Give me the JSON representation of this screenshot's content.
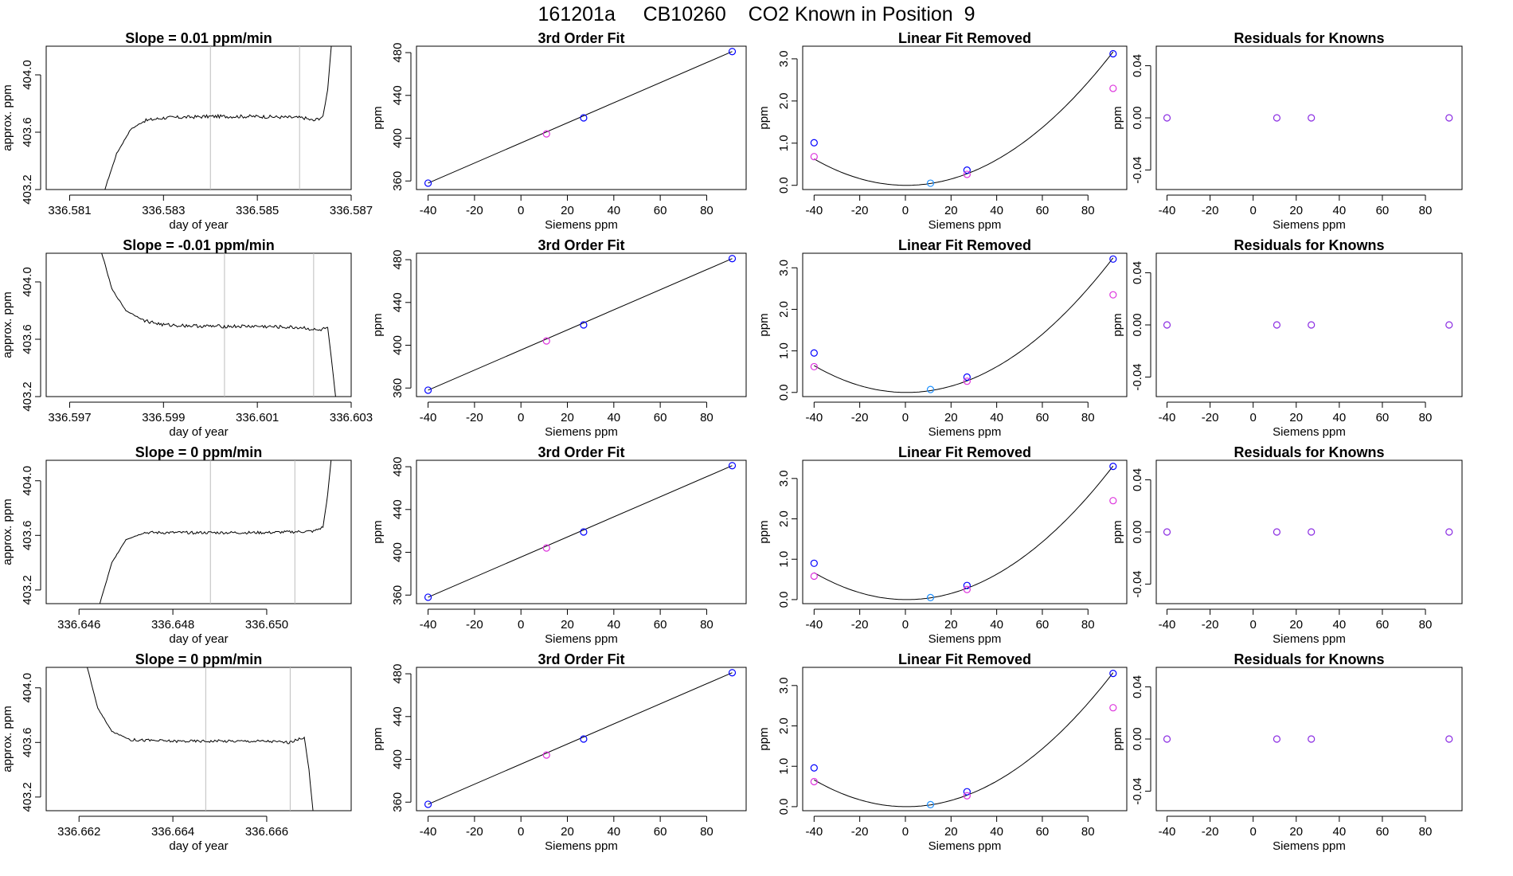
{
  "page": {
    "title": "161201a     CB10260    CO2 Known in Position  9"
  },
  "colors": {
    "axis": "#000000",
    "trace": "#000000",
    "vline": "#bdbdbd",
    "blue_point": "#0000ff",
    "cyan_point": "#1e90ff",
    "magenta_point": "#dd33dd",
    "fit_line": "#000000"
  },
  "chart_data": [
    {
      "type": "line",
      "title": "Slope =  0.01  ppm/min",
      "xlabel": "day of year",
      "ylabel": "approx. ppm",
      "xlim": [
        336.5805,
        336.587
      ],
      "ylim": [
        403.2,
        404.2
      ],
      "xticks": [
        "336.581",
        "336.583",
        "336.585",
        "336.587"
      ],
      "yticks": [
        "403.2",
        "403.6",
        "404.0"
      ],
      "vlines": [
        336.584,
        336.5859
      ],
      "trace": [
        [
          336.5817,
          403.15
        ],
        [
          336.582,
          403.45
        ],
        [
          336.5823,
          403.62
        ],
        [
          336.5826,
          403.68
        ],
        [
          336.583,
          403.7
        ],
        [
          336.584,
          403.71
        ],
        [
          336.585,
          403.71
        ],
        [
          336.586,
          403.7
        ],
        [
          336.5862,
          403.68
        ],
        [
          336.5864,
          403.71
        ],
        [
          336.5865,
          403.9
        ],
        [
          336.5866,
          404.3
        ]
      ],
      "noise": 0.012
    },
    {
      "type": "scatter",
      "title": "3rd Order Fit",
      "xlabel": "Siemens ppm",
      "ylabel": "ppm",
      "xlim": [
        -45,
        97
      ],
      "ylim": [
        352,
        486
      ],
      "xticks": [
        "-40",
        "-20",
        "0",
        "20",
        "40",
        "60",
        "80"
      ],
      "yticks": [
        "360",
        "400",
        "440",
        "480"
      ],
      "points": [
        {
          "x": -40,
          "y": 358,
          "c": "blue"
        },
        {
          "x": 11,
          "y": 404,
          "c": "magenta"
        },
        {
          "x": 27,
          "y": 419,
          "c": "blue"
        },
        {
          "x": 91,
          "y": 481,
          "c": "blue"
        }
      ],
      "fit": {
        "x": [
          -40,
          91
        ],
        "y": [
          358,
          481
        ]
      }
    },
    {
      "type": "scatter",
      "title": "Linear Fit Removed",
      "xlabel": "Siemens ppm",
      "ylabel": "ppm",
      "xlim": [
        -45,
        97
      ],
      "ylim": [
        -0.1,
        3.3
      ],
      "xticks": [
        "-40",
        "-20",
        "0",
        "20",
        "40",
        "60",
        "80"
      ],
      "yticks": [
        "0.0",
        "1.0",
        "2.0",
        "3.0"
      ],
      "points": [
        {
          "x": -40,
          "y": 1.01,
          "c": "blue"
        },
        {
          "x": -40,
          "y": 0.68,
          "c": "magenta"
        },
        {
          "x": 11,
          "y": 0.05,
          "c": "cyan"
        },
        {
          "x": 27,
          "y": 0.36,
          "c": "blue"
        },
        {
          "x": 27,
          "y": 0.26,
          "c": "magenta"
        },
        {
          "x": 91,
          "y": 3.12,
          "c": "blue"
        },
        {
          "x": 91,
          "y": 2.3,
          "c": "magenta"
        }
      ],
      "curve": {
        "a": 0.000385,
        "b": -0.00025,
        "c": 0
      }
    },
    {
      "type": "scatter",
      "title": "Residuals for Knowns",
      "xlabel": "Siemens ppm",
      "ylabel": "ppm",
      "xlim": [
        -45,
        97
      ],
      "ylim": [
        -0.055,
        0.055
      ],
      "xticks": [
        "-40",
        "-20",
        "0",
        "20",
        "40",
        "60",
        "80"
      ],
      "yticks": [
        "-0.04",
        "0.00",
        "0.04"
      ],
      "points": [
        {
          "x": -40,
          "y": 0,
          "c": "violet"
        },
        {
          "x": 11,
          "y": 0,
          "c": "violet"
        },
        {
          "x": 27,
          "y": 0,
          "c": "violet"
        },
        {
          "x": 91,
          "y": 0,
          "c": "violet"
        }
      ]
    },
    {
      "type": "line",
      "title": "Slope =  -0.01  ppm/min",
      "xlabel": "day of year",
      "ylabel": "approx. ppm",
      "xlim": [
        336.5965,
        336.603
      ],
      "ylim": [
        403.2,
        404.2
      ],
      "xticks": [
        "336.597",
        "336.599",
        "336.601",
        "336.603"
      ],
      "yticks": [
        "403.2",
        "403.6",
        "404.0"
      ],
      "vlines": [
        336.6003,
        336.6022
      ],
      "trace": [
        [
          336.5976,
          404.3
        ],
        [
          336.5979,
          403.95
        ],
        [
          336.5982,
          403.8
        ],
        [
          336.5986,
          403.73
        ],
        [
          336.599,
          403.7
        ],
        [
          336.6,
          403.69
        ],
        [
          336.601,
          403.69
        ],
        [
          336.602,
          403.68
        ],
        [
          336.6023,
          403.66
        ],
        [
          336.6025,
          403.68
        ],
        [
          336.6026,
          403.4
        ],
        [
          336.6027,
          403.1
        ]
      ],
      "noise": 0.012
    },
    {
      "type": "scatter",
      "title": "3rd Order Fit",
      "xlabel": "Siemens ppm",
      "ylabel": "ppm",
      "xlim": [
        -45,
        97
      ],
      "ylim": [
        352,
        486
      ],
      "xticks": [
        "-40",
        "-20",
        "0",
        "20",
        "40",
        "60",
        "80"
      ],
      "yticks": [
        "360",
        "400",
        "440",
        "480"
      ],
      "points": [
        {
          "x": -40,
          "y": 358,
          "c": "blue"
        },
        {
          "x": 11,
          "y": 404,
          "c": "magenta"
        },
        {
          "x": 27,
          "y": 419,
          "c": "blue"
        },
        {
          "x": 91,
          "y": 481,
          "c": "blue"
        }
      ],
      "fit": {
        "x": [
          -40,
          91
        ],
        "y": [
          358,
          481
        ]
      }
    },
    {
      "type": "scatter",
      "title": "Linear Fit Removed",
      "xlabel": "Siemens ppm",
      "ylabel": "ppm",
      "xlim": [
        -45,
        97
      ],
      "ylim": [
        -0.1,
        3.35
      ],
      "xticks": [
        "-40",
        "-20",
        "0",
        "20",
        "40",
        "60",
        "80"
      ],
      "yticks": [
        "0.0",
        "1.0",
        "2.0",
        "3.0"
      ],
      "points": [
        {
          "x": -40,
          "y": 0.95,
          "c": "blue"
        },
        {
          "x": -40,
          "y": 0.62,
          "c": "magenta"
        },
        {
          "x": 11,
          "y": 0.07,
          "c": "cyan"
        },
        {
          "x": 27,
          "y": 0.37,
          "c": "blue"
        },
        {
          "x": 27,
          "y": 0.27,
          "c": "magenta"
        },
        {
          "x": 91,
          "y": 3.21,
          "c": "blue"
        },
        {
          "x": 91,
          "y": 2.35,
          "c": "magenta"
        }
      ],
      "curve": {
        "a": 0.000395,
        "b": -0.00035,
        "c": 0
      }
    },
    {
      "type": "scatter",
      "title": "Residuals for Knowns",
      "xlabel": "Siemens ppm",
      "ylabel": "ppm",
      "xlim": [
        -45,
        97
      ],
      "ylim": [
        -0.055,
        0.055
      ],
      "xticks": [
        "-40",
        "-20",
        "0",
        "20",
        "40",
        "60",
        "80"
      ],
      "yticks": [
        "-0.04",
        "0.00",
        "0.04"
      ],
      "points": [
        {
          "x": -40,
          "y": 0,
          "c": "violet"
        },
        {
          "x": 11,
          "y": 0,
          "c": "violet"
        },
        {
          "x": 27,
          "y": 0,
          "c": "violet"
        },
        {
          "x": 91,
          "y": 0,
          "c": "violet"
        }
      ]
    },
    {
      "type": "line",
      "title": "Slope =  0  ppm/min",
      "xlabel": "day of year",
      "ylabel": "approx. ppm",
      "xlim": [
        336.6453,
        336.6518
      ],
      "ylim": [
        403.1,
        404.15
      ],
      "xticks": [
        "336.646",
        "336.648",
        "336.650"
      ],
      "yticks": [
        "403.2",
        "403.6",
        "404.0"
      ],
      "vlines": [
        336.6488,
        336.6506
      ],
      "trace": [
        [
          336.6464,
          403.05
        ],
        [
          336.6467,
          403.4
        ],
        [
          336.647,
          403.57
        ],
        [
          336.6474,
          403.62
        ],
        [
          336.648,
          403.62
        ],
        [
          336.649,
          403.62
        ],
        [
          336.65,
          403.62
        ],
        [
          336.651,
          403.63
        ],
        [
          336.6512,
          403.66
        ],
        [
          336.6513,
          403.9
        ],
        [
          336.6514,
          404.25
        ]
      ],
      "noise": 0.01
    },
    {
      "type": "scatter",
      "title": "3rd Order Fit",
      "xlabel": "Siemens ppm",
      "ylabel": "ppm",
      "xlim": [
        -45,
        97
      ],
      "ylim": [
        352,
        486
      ],
      "xticks": [
        "-40",
        "-20",
        "0",
        "20",
        "40",
        "60",
        "80"
      ],
      "yticks": [
        "360",
        "400",
        "440",
        "480"
      ],
      "points": [
        {
          "x": -40,
          "y": 358,
          "c": "blue"
        },
        {
          "x": 11,
          "y": 404,
          "c": "magenta"
        },
        {
          "x": 27,
          "y": 419,
          "c": "blue"
        },
        {
          "x": 91,
          "y": 481,
          "c": "blue"
        }
      ],
      "fit": {
        "x": [
          -40,
          91
        ],
        "y": [
          358,
          481
        ]
      }
    },
    {
      "type": "scatter",
      "title": "Linear Fit Removed",
      "xlabel": "Siemens ppm",
      "ylabel": "ppm",
      "xlim": [
        -45,
        97
      ],
      "ylim": [
        -0.1,
        3.45
      ],
      "xticks": [
        "-40",
        "-20",
        "0",
        "20",
        "40",
        "60",
        "80"
      ],
      "yticks": [
        "0.0",
        "1.0",
        "2.0",
        "3.0"
      ],
      "points": [
        {
          "x": -40,
          "y": 0.9,
          "c": "blue"
        },
        {
          "x": -40,
          "y": 0.58,
          "c": "magenta"
        },
        {
          "x": 11,
          "y": 0.05,
          "c": "cyan"
        },
        {
          "x": 27,
          "y": 0.35,
          "c": "blue"
        },
        {
          "x": 27,
          "y": 0.25,
          "c": "magenta"
        },
        {
          "x": 91,
          "y": 3.3,
          "c": "blue"
        },
        {
          "x": 91,
          "y": 2.45,
          "c": "magenta"
        }
      ],
      "curve": {
        "a": 0.000405,
        "b": -0.0005,
        "c": 0
      }
    },
    {
      "type": "scatter",
      "title": "Residuals for Knowns",
      "xlabel": "Siemens ppm",
      "ylabel": "ppm",
      "xlim": [
        -45,
        97
      ],
      "ylim": [
        -0.055,
        0.055
      ],
      "xticks": [
        "-40",
        "-20",
        "0",
        "20",
        "40",
        "60",
        "80"
      ],
      "yticks": [
        "-0.04",
        "0.00",
        "0.04"
      ],
      "points": [
        {
          "x": -40,
          "y": 0,
          "c": "violet"
        },
        {
          "x": 11,
          "y": 0,
          "c": "violet"
        },
        {
          "x": 27,
          "y": 0,
          "c": "violet"
        },
        {
          "x": 91,
          "y": 0,
          "c": "violet"
        }
      ]
    },
    {
      "type": "line",
      "title": "Slope =  0  ppm/min",
      "xlabel": "day of year",
      "ylabel": "approx. ppm",
      "xlim": [
        336.6613,
        336.6678
      ],
      "ylim": [
        403.1,
        404.15
      ],
      "xticks": [
        "336.662",
        "336.664",
        "336.666"
      ],
      "yticks": [
        "403.2",
        "403.6",
        "404.0"
      ],
      "vlines": [
        336.6647,
        336.6665
      ],
      "trace": [
        [
          336.6621,
          404.25
        ],
        [
          336.6624,
          403.85
        ],
        [
          336.6627,
          403.68
        ],
        [
          336.6631,
          403.62
        ],
        [
          336.664,
          403.61
        ],
        [
          336.665,
          403.61
        ],
        [
          336.666,
          403.61
        ],
        [
          336.6665,
          403.6
        ],
        [
          336.6668,
          403.64
        ],
        [
          336.6669,
          403.4
        ],
        [
          336.667,
          403.05
        ]
      ],
      "noise": 0.01
    },
    {
      "type": "scatter",
      "title": "3rd Order Fit",
      "xlabel": "Siemens ppm",
      "ylabel": "ppm",
      "xlim": [
        -45,
        97
      ],
      "ylim": [
        352,
        486
      ],
      "xticks": [
        "-40",
        "-20",
        "0",
        "20",
        "40",
        "60",
        "80"
      ],
      "yticks": [
        "360",
        "400",
        "440",
        "480"
      ],
      "points": [
        {
          "x": -40,
          "y": 358,
          "c": "blue"
        },
        {
          "x": 11,
          "y": 404,
          "c": "magenta"
        },
        {
          "x": 27,
          "y": 419,
          "c": "blue"
        },
        {
          "x": 91,
          "y": 481,
          "c": "blue"
        }
      ],
      "fit": {
        "x": [
          -40,
          91
        ],
        "y": [
          358,
          481
        ]
      }
    },
    {
      "type": "scatter",
      "title": "Linear Fit Removed",
      "xlabel": "Siemens ppm",
      "ylabel": "ppm",
      "xlim": [
        -45,
        97
      ],
      "ylim": [
        -0.1,
        3.45
      ],
      "xticks": [
        "-40",
        "-20",
        "0",
        "20",
        "40",
        "60",
        "80"
      ],
      "yticks": [
        "0.0",
        "1.0",
        "2.0",
        "3.0"
      ],
      "points": [
        {
          "x": -40,
          "y": 0.96,
          "c": "blue"
        },
        {
          "x": -40,
          "y": 0.62,
          "c": "magenta"
        },
        {
          "x": 11,
          "y": 0.05,
          "c": "cyan"
        },
        {
          "x": 27,
          "y": 0.37,
          "c": "blue"
        },
        {
          "x": 27,
          "y": 0.27,
          "c": "magenta"
        },
        {
          "x": 91,
          "y": 3.3,
          "c": "blue"
        },
        {
          "x": 91,
          "y": 2.45,
          "c": "magenta"
        }
      ],
      "curve": {
        "a": 0.000405,
        "b": -0.0004,
        "c": 0
      }
    },
    {
      "type": "scatter",
      "title": "Residuals for Knowns",
      "xlabel": "Siemens ppm",
      "ylabel": "ppm",
      "xlim": [
        -45,
        97
      ],
      "ylim": [
        -0.055,
        0.055
      ],
      "xticks": [
        "-40",
        "-20",
        "0",
        "20",
        "40",
        "60",
        "80"
      ],
      "yticks": [
        "-0.04",
        "0.00",
        "0.04"
      ],
      "points": [
        {
          "x": -40,
          "y": 0,
          "c": "violet"
        },
        {
          "x": 11,
          "y": 0,
          "c": "violet"
        },
        {
          "x": 27,
          "y": 0,
          "c": "violet"
        },
        {
          "x": 91,
          "y": 0,
          "c": "violet"
        }
      ]
    }
  ]
}
